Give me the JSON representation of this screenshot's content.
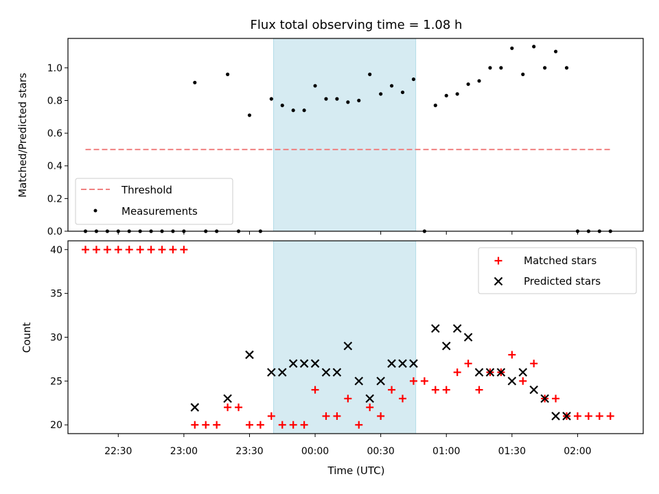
{
  "chart_data": [
    {
      "type": "scatter",
      "title": "Flux total observing time = 1.08 h",
      "xlabel": "",
      "ylabel": "Matched/Predicted stars",
      "ylim": [
        0,
        1.18
      ],
      "yticks": [
        "0.0",
        "0.2",
        "0.4",
        "0.6",
        "0.8",
        "1.0"
      ],
      "shaded_interval": [
        "23:41",
        "00:46"
      ],
      "threshold": {
        "name": "Threshold",
        "value": 0.5,
        "x_range": [
          "22:15",
          "02:15"
        ],
        "color": "#f08080"
      },
      "legend": {
        "placement": "lower-left",
        "entries": [
          "Threshold",
          "Measurements"
        ]
      },
      "series": [
        {
          "name": "Measurements",
          "marker": "dot",
          "color": "#000000",
          "points": [
            [
              "22:15",
              0.0
            ],
            [
              "22:20",
              0.0
            ],
            [
              "22:25",
              0.0
            ],
            [
              "22:30",
              0.0
            ],
            [
              "22:35",
              0.0
            ],
            [
              "22:40",
              0.0
            ],
            [
              "22:45",
              0.0
            ],
            [
              "22:50",
              0.0
            ],
            [
              "22:55",
              0.0
            ],
            [
              "23:00",
              0.0
            ],
            [
              "23:05",
              0.91
            ],
            [
              "23:10",
              0.0
            ],
            [
              "23:15",
              0.0
            ],
            [
              "23:20",
              0.96
            ],
            [
              "23:25",
              0.0
            ],
            [
              "23:30",
              0.71
            ],
            [
              "23:35",
              0.0
            ],
            [
              "23:40",
              0.81
            ],
            [
              "23:45",
              0.77
            ],
            [
              "23:50",
              0.74
            ],
            [
              "23:55",
              0.74
            ],
            [
              "00:00",
              0.89
            ],
            [
              "00:05",
              0.81
            ],
            [
              "00:10",
              0.81
            ],
            [
              "00:15",
              0.79
            ],
            [
              "00:20",
              0.8
            ],
            [
              "00:25",
              0.96
            ],
            [
              "00:30",
              0.84
            ],
            [
              "00:35",
              0.89
            ],
            [
              "00:40",
              0.85
            ],
            [
              "00:45",
              0.93
            ],
            [
              "00:50",
              0.0
            ],
            [
              "00:55",
              0.77
            ],
            [
              "01:00",
              0.83
            ],
            [
              "01:05",
              0.84
            ],
            [
              "01:10",
              0.9
            ],
            [
              "01:15",
              0.92
            ],
            [
              "01:20",
              1.0
            ],
            [
              "01:25",
              1.0
            ],
            [
              "01:30",
              1.12
            ],
            [
              "01:35",
              0.96
            ],
            [
              "01:40",
              1.13
            ],
            [
              "01:45",
              1.0
            ],
            [
              "01:50",
              1.1
            ],
            [
              "01:55",
              1.0
            ],
            [
              "02:00",
              0.0
            ],
            [
              "02:05",
              0.0
            ],
            [
              "02:10",
              0.0
            ],
            [
              "02:15",
              0.0
            ]
          ]
        }
      ]
    },
    {
      "type": "scatter",
      "xlabel": "Time (UTC)",
      "ylabel": "Count",
      "ylim": [
        19,
        41
      ],
      "yticks": [
        "20",
        "25",
        "30",
        "35",
        "40"
      ],
      "xticks": [
        "22:30",
        "23:00",
        "23:30",
        "00:00",
        "00:30",
        "01:00",
        "01:30",
        "02:00"
      ],
      "xlim": [
        "22:07",
        "02:30"
      ],
      "shaded_interval": [
        "23:41",
        "00:46"
      ],
      "legend": {
        "placement": "top-right",
        "entries": [
          "Matched stars",
          "Predicted stars"
        ]
      },
      "series": [
        {
          "name": "Matched stars",
          "marker": "plus",
          "color": "#ff0000",
          "points": [
            [
              "22:15",
              40
            ],
            [
              "22:20",
              40
            ],
            [
              "22:25",
              40
            ],
            [
              "22:30",
              40
            ],
            [
              "22:35",
              40
            ],
            [
              "22:40",
              40
            ],
            [
              "22:45",
              40
            ],
            [
              "22:50",
              40
            ],
            [
              "22:55",
              40
            ],
            [
              "23:00",
              40
            ],
            [
              "23:05",
              20
            ],
            [
              "23:10",
              20
            ],
            [
              "23:15",
              20
            ],
            [
              "23:20",
              22
            ],
            [
              "23:25",
              22
            ],
            [
              "23:30",
              20
            ],
            [
              "23:35",
              20
            ],
            [
              "23:40",
              21
            ],
            [
              "23:45",
              20
            ],
            [
              "23:50",
              20
            ],
            [
              "23:55",
              20
            ],
            [
              "00:00",
              24
            ],
            [
              "00:05",
              21
            ],
            [
              "00:10",
              21
            ],
            [
              "00:15",
              23
            ],
            [
              "00:20",
              20
            ],
            [
              "00:25",
              22
            ],
            [
              "00:30",
              21
            ],
            [
              "00:35",
              24
            ],
            [
              "00:40",
              23
            ],
            [
              "00:45",
              25
            ],
            [
              "00:50",
              25
            ],
            [
              "00:55",
              24
            ],
            [
              "01:00",
              24
            ],
            [
              "01:05",
              26
            ],
            [
              "01:10",
              27
            ],
            [
              "01:15",
              24
            ],
            [
              "01:20",
              26
            ],
            [
              "01:25",
              26
            ],
            [
              "01:30",
              28
            ],
            [
              "01:35",
              25
            ],
            [
              "01:40",
              27
            ],
            [
              "01:45",
              23
            ],
            [
              "01:50",
              23
            ],
            [
              "01:55",
              21
            ],
            [
              "02:00",
              21
            ],
            [
              "02:05",
              21
            ],
            [
              "02:10",
              21
            ],
            [
              "02:15",
              21
            ]
          ]
        },
        {
          "name": "Predicted stars",
          "marker": "x",
          "color": "#000000",
          "points": [
            [
              "23:05",
              22
            ],
            [
              "23:20",
              23
            ],
            [
              "23:30",
              28
            ],
            [
              "23:40",
              26
            ],
            [
              "23:45",
              26
            ],
            [
              "23:50",
              27
            ],
            [
              "23:55",
              27
            ],
            [
              "00:00",
              27
            ],
            [
              "00:05",
              26
            ],
            [
              "00:10",
              26
            ],
            [
              "00:15",
              29
            ],
            [
              "00:20",
              25
            ],
            [
              "00:25",
              23
            ],
            [
              "00:30",
              25
            ],
            [
              "00:35",
              27
            ],
            [
              "00:40",
              27
            ],
            [
              "00:45",
              27
            ],
            [
              "00:55",
              31
            ],
            [
              "01:00",
              29
            ],
            [
              "01:05",
              31
            ],
            [
              "01:10",
              30
            ],
            [
              "01:15",
              26
            ],
            [
              "01:20",
              26
            ],
            [
              "01:25",
              26
            ],
            [
              "01:30",
              25
            ],
            [
              "01:35",
              26
            ],
            [
              "01:40",
              24
            ],
            [
              "01:45",
              23
            ],
            [
              "01:50",
              21
            ],
            [
              "01:55",
              21
            ]
          ]
        }
      ]
    }
  ]
}
